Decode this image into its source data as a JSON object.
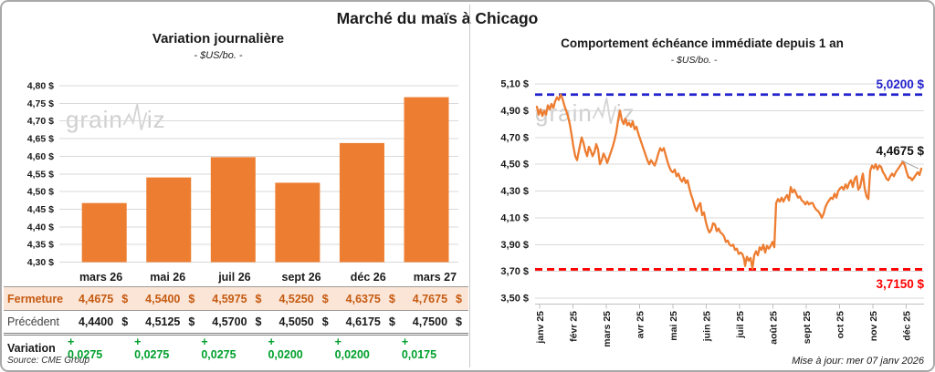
{
  "header": {
    "title": "Marché du maïs à Chicago"
  },
  "watermark": {
    "prefix": "grain",
    "suffix": "iz"
  },
  "left_chart": {
    "title": "Variation journalière",
    "subtitle": "- $US/bo. -"
  },
  "right_chart": {
    "title": "Comportement échéance immédiate depuis 1 an",
    "subtitle": "- $US/bo. -",
    "upper_label": "5,0200 $",
    "current_label": "4,4675 $",
    "lower_label": "3,7150 $"
  },
  "table": {
    "columns": [
      "mars 26",
      "mai 26",
      "juil 26",
      "sept 26",
      "déc 26",
      "mars 27"
    ],
    "currency": "$",
    "rows": {
      "fermeture": {
        "label": "Fermeture",
        "values": [
          "4,4675",
          "4,5400",
          "4,5975",
          "4,5250",
          "4,6375",
          "4,7675"
        ]
      },
      "precedent": {
        "label": "Précédent",
        "values": [
          "4,4400",
          "4,5125",
          "4,5700",
          "4,5050",
          "4,6175",
          "4,7500"
        ]
      },
      "variation": {
        "label": "Variation",
        "values": [
          "+ 0,0275",
          "+ 0,0275",
          "+ 0,0275",
          "+ 0,0200",
          "+ 0,0200",
          "+ 0,0175"
        ]
      }
    }
  },
  "footer": {
    "source": "Source: CME Group",
    "updated": "Mise à jour: mer 07 janv 2026"
  },
  "colors": {
    "series_orange": "#ED7D31",
    "upper_threshold_blue": "#2222CC",
    "lower_threshold_red": "#FF0000",
    "gridline": "#D9D9D9",
    "axis": "#BFBFBF",
    "leader": "#A6A6A6",
    "fermeture_bg": "#FBE5D6",
    "fermeture_text": "#C55A11",
    "variation_green": "#00A02C",
    "watermark": "#CFCFCF"
  },
  "chart_data": [
    {
      "type": "bar",
      "title": "Variation journalière",
      "unit": "$US/bo.",
      "categories": [
        "mars 26",
        "mai 26",
        "juil 26",
        "sept 26",
        "déc 26",
        "mars 27"
      ],
      "values": [
        4.4675,
        4.54,
        4.5975,
        4.525,
        4.6375,
        4.7675
      ],
      "ylim": [
        4.3,
        4.8
      ],
      "ytick_step": 0.05,
      "grid": true
    },
    {
      "type": "line",
      "title": "Comportement échéance immédiate depuis 1 an",
      "unit": "$US/bo.",
      "x_months": [
        "janv 25",
        "févr 25",
        "mars 25",
        "avr 25",
        "mai 25",
        "juin 25",
        "juil 25",
        "août 25",
        "sept 25",
        "oct 25",
        "nov 25",
        "déc 25"
      ],
      "ylim": [
        3.5,
        5.1
      ],
      "ytick_step": 0.2,
      "upper_threshold": 5.02,
      "lower_threshold": 3.715,
      "last_value": 4.4675,
      "grid": true,
      "points": [
        [
          586,
          4.93
        ],
        [
          588,
          4.87
        ],
        [
          590,
          4.91
        ],
        [
          592,
          4.86
        ],
        [
          594,
          4.9
        ],
        [
          596,
          4.87
        ],
        [
          598,
          4.94
        ],
        [
          600,
          4.91
        ],
        [
          602,
          4.95
        ],
        [
          604,
          4.92
        ],
        [
          606,
          4.97
        ],
        [
          608,
          5.0
        ],
        [
          610,
          4.98
        ],
        [
          612,
          5.02
        ],
        [
          614,
          4.99
        ],
        [
          616,
          4.94
        ],
        [
          618,
          4.9
        ],
        [
          620,
          4.86
        ],
        [
          622,
          4.8
        ],
        [
          624,
          4.72
        ],
        [
          626,
          4.63
        ],
        [
          628,
          4.56
        ],
        [
          630,
          4.53
        ],
        [
          632,
          4.6
        ],
        [
          635,
          4.7
        ],
        [
          637,
          4.66
        ],
        [
          639,
          4.6
        ],
        [
          641,
          4.56
        ],
        [
          643,
          4.63
        ],
        [
          645,
          4.6
        ],
        [
          647,
          4.56
        ],
        [
          649,
          4.59
        ],
        [
          651,
          4.65
        ],
        [
          653,
          4.61
        ],
        [
          655,
          4.5
        ],
        [
          657,
          4.53
        ],
        [
          659,
          4.58
        ],
        [
          661,
          4.55
        ],
        [
          663,
          4.51
        ],
        [
          665,
          4.55
        ],
        [
          667,
          4.59
        ],
        [
          669,
          4.63
        ],
        [
          671,
          4.68
        ],
        [
          673,
          4.74
        ],
        [
          675,
          4.83
        ],
        [
          677,
          4.9
        ],
        [
          679,
          4.83
        ],
        [
          681,
          4.8
        ],
        [
          683,
          4.84
        ],
        [
          685,
          4.79
        ],
        [
          687,
          4.81
        ],
        [
          689,
          4.78
        ],
        [
          691,
          4.82
        ],
        [
          693,
          4.76
        ],
        [
          695,
          4.78
        ],
        [
          697,
          4.73
        ],
        [
          699,
          4.69
        ],
        [
          701,
          4.65
        ],
        [
          703,
          4.61
        ],
        [
          705,
          4.57
        ],
        [
          707,
          4.53
        ],
        [
          709,
          4.5
        ],
        [
          711,
          4.53
        ],
        [
          713,
          4.51
        ],
        [
          715,
          4.49
        ],
        [
          717,
          4.53
        ],
        [
          719,
          4.58
        ],
        [
          721,
          4.62
        ],
        [
          723,
          4.6
        ],
        [
          725,
          4.62
        ],
        [
          727,
          4.57
        ],
        [
          729,
          4.52
        ],
        [
          731,
          4.48
        ],
        [
          733,
          4.45
        ],
        [
          735,
          4.44
        ],
        [
          737,
          4.46
        ],
        [
          739,
          4.41
        ],
        [
          741,
          4.43
        ],
        [
          743,
          4.39
        ],
        [
          745,
          4.37
        ],
        [
          747,
          4.4
        ],
        [
          749,
          4.36
        ],
        [
          751,
          4.38
        ],
        [
          753,
          4.32
        ],
        [
          755,
          4.27
        ],
        [
          757,
          4.23
        ],
        [
          759,
          4.18
        ],
        [
          761,
          4.15
        ],
        [
          763,
          4.19
        ],
        [
          765,
          4.21
        ],
        [
          767,
          4.12
        ],
        [
          769,
          4.14
        ],
        [
          771,
          4.07
        ],
        [
          773,
          4.02
        ],
        [
          775,
          3.99
        ],
        [
          777,
          4.01
        ],
        [
          779,
          4.06
        ],
        [
          781,
          4.05
        ],
        [
          783,
          4.0
        ],
        [
          785,
          4.02
        ],
        [
          787,
          3.99
        ],
        [
          789,
          3.98
        ],
        [
          791,
          3.96
        ],
        [
          793,
          3.92
        ],
        [
          795,
          3.93
        ],
        [
          797,
          3.9
        ],
        [
          799,
          3.89
        ],
        [
          801,
          3.9
        ],
        [
          803,
          3.86
        ],
        [
          805,
          3.87
        ],
        [
          807,
          3.83
        ],
        [
          809,
          3.84
        ],
        [
          811,
          3.83
        ],
        [
          813,
          3.79
        ],
        [
          814,
          3.74
        ],
        [
          816,
          3.81
        ],
        [
          818,
          3.78
        ],
        [
          820,
          3.8
        ],
        [
          822,
          3.72
        ],
        [
          824,
          3.82
        ],
        [
          826,
          3.85
        ],
        [
          828,
          3.82
        ],
        [
          830,
          3.88
        ],
        [
          832,
          3.86
        ],
        [
          834,
          3.9
        ],
        [
          836,
          3.84
        ],
        [
          838,
          3.89
        ],
        [
          840,
          3.87
        ],
        [
          842,
          3.89
        ],
        [
          844,
          3.92
        ],
        [
          846,
          3.88
        ],
        [
          848,
          4.21
        ],
        [
          850,
          4.24
        ],
        [
          852,
          4.22
        ],
        [
          854,
          4.25
        ],
        [
          856,
          4.22
        ],
        [
          858,
          4.25
        ],
        [
          860,
          4.27
        ],
        [
          862,
          4.23
        ],
        [
          864,
          4.33
        ],
        [
          866,
          4.29
        ],
        [
          868,
          4.31
        ],
        [
          870,
          4.28
        ],
        [
          872,
          4.25
        ],
        [
          874,
          4.26
        ],
        [
          876,
          4.23
        ],
        [
          878,
          4.22
        ],
        [
          880,
          4.2
        ],
        [
          882,
          4.22
        ],
        [
          884,
          4.2
        ],
        [
          886,
          4.21
        ],
        [
          888,
          4.21
        ],
        [
          890,
          4.18
        ],
        [
          892,
          4.16
        ],
        [
          894,
          4.15
        ],
        [
          896,
          4.13
        ],
        [
          898,
          4.1
        ],
        [
          900,
          4.13
        ],
        [
          902,
          4.18
        ],
        [
          904,
          4.21
        ],
        [
          906,
          4.23
        ],
        [
          908,
          4.25
        ],
        [
          910,
          4.24
        ],
        [
          912,
          4.28
        ],
        [
          914,
          4.25
        ],
        [
          916,
          4.3
        ],
        [
          918,
          4.32
        ],
        [
          920,
          4.33
        ],
        [
          922,
          4.31
        ],
        [
          924,
          4.35
        ],
        [
          926,
          4.32
        ],
        [
          928,
          4.36
        ],
        [
          930,
          4.38
        ],
        [
          932,
          4.33
        ],
        [
          934,
          4.39
        ],
        [
          936,
          4.41
        ],
        [
          938,
          4.31
        ],
        [
          940,
          4.33
        ],
        [
          942,
          4.4
        ],
        [
          943,
          4.43
        ],
        [
          945,
          4.32
        ],
        [
          947,
          4.26
        ],
        [
          949,
          4.24
        ],
        [
          951,
          4.45
        ],
        [
          953,
          4.49
        ],
        [
          955,
          4.47
        ],
        [
          957,
          4.5
        ],
        [
          959,
          4.46
        ],
        [
          961,
          4.49
        ],
        [
          963,
          4.48
        ],
        [
          965,
          4.44
        ],
        [
          967,
          4.42
        ],
        [
          969,
          4.39
        ],
        [
          971,
          4.38
        ],
        [
          973,
          4.41
        ],
        [
          975,
          4.43
        ],
        [
          977,
          4.41
        ],
        [
          979,
          4.44
        ],
        [
          981,
          4.46
        ],
        [
          983,
          4.48
        ],
        [
          985,
          4.5
        ],
        [
          987,
          4.52
        ],
        [
          989,
          4.49
        ],
        [
          991,
          4.44
        ],
        [
          993,
          4.4
        ],
        [
          995,
          4.4
        ],
        [
          997,
          4.38
        ],
        [
          999,
          4.4
        ],
        [
          1001,
          4.42
        ],
        [
          1003,
          4.44
        ],
        [
          1005,
          4.42
        ],
        [
          1007,
          4.4675
        ]
      ]
    }
  ]
}
